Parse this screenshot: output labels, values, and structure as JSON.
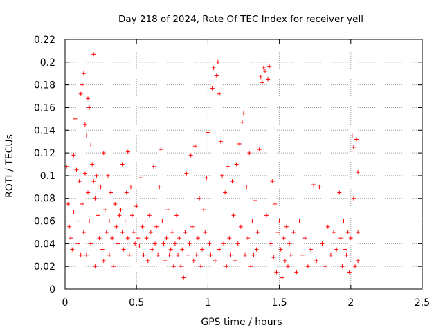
{
  "chart_data": {
    "type": "scatter",
    "title": "Day 218 of 2024, Rate Of TEC Index for receiver yell",
    "xlabel": "GPS time / hours",
    "ylabel": "ROTI / TECUs",
    "xlim": [
      0,
      2.5
    ],
    "ylim": [
      0,
      0.22
    ],
    "xticks": [
      0,
      0.5,
      1,
      1.5,
      2,
      2.5
    ],
    "xtick_labels": [
      "0",
      "0.5",
      "1",
      "1.5",
      "2",
      "2.5"
    ],
    "yticks": [
      0,
      0.02,
      0.04,
      0.06,
      0.08,
      0.1,
      0.12,
      0.14,
      0.16,
      0.18,
      0.2,
      0.22
    ],
    "ytick_labels": [
      "0",
      "0.02",
      "0.04",
      "0.06",
      "0.08",
      "0.1",
      "0.12",
      "0.14",
      "0.16",
      "0.18",
      "0.2",
      "0.22"
    ],
    "grid": true,
    "marker": "+",
    "marker_color": "#ff0000",
    "series": [
      {
        "name": "ROTI",
        "points": [
          [
            0.01,
            0.108
          ],
          [
            0.02,
            0.075
          ],
          [
            0.03,
            0.055
          ],
          [
            0.04,
            0.045
          ],
          [
            0.05,
            0.035
          ],
          [
            0.06,
            0.118
          ],
          [
            0.06,
            0.068
          ],
          [
            0.07,
            0.15
          ],
          [
            0.08,
            0.105
          ],
          [
            0.09,
            0.06
          ],
          [
            0.09,
            0.04
          ],
          [
            0.1,
            0.095
          ],
          [
            0.11,
            0.172
          ],
          [
            0.11,
            0.03
          ],
          [
            0.12,
            0.18
          ],
          [
            0.12,
            0.075
          ],
          [
            0.13,
            0.19
          ],
          [
            0.13,
            0.05
          ],
          [
            0.14,
            0.145
          ],
          [
            0.14,
            0.102
          ],
          [
            0.15,
            0.135
          ],
          [
            0.15,
            0.03
          ],
          [
            0.16,
            0.168
          ],
          [
            0.16,
            0.085
          ],
          [
            0.17,
            0.16
          ],
          [
            0.17,
            0.06
          ],
          [
            0.18,
            0.127
          ],
          [
            0.18,
            0.04
          ],
          [
            0.19,
            0.11
          ],
          [
            0.2,
            0.207
          ],
          [
            0.2,
            0.095
          ],
          [
            0.21,
            0.08
          ],
          [
            0.21,
            0.02
          ],
          [
            0.22,
            0.1
          ],
          [
            0.23,
            0.065
          ],
          [
            0.24,
            0.045
          ],
          [
            0.25,
            0.09
          ],
          [
            0.26,
            0.035
          ],
          [
            0.27,
            0.12
          ],
          [
            0.27,
            0.025
          ],
          [
            0.28,
            0.07
          ],
          [
            0.29,
            0.05
          ],
          [
            0.3,
            0.1
          ],
          [
            0.31,
            0.06
          ],
          [
            0.31,
            0.03
          ],
          [
            0.32,
            0.085
          ],
          [
            0.33,
            0.045
          ],
          [
            0.34,
            0.02
          ],
          [
            0.35,
            0.075
          ],
          [
            0.36,
            0.055
          ],
          [
            0.37,
            0.04
          ],
          [
            0.38,
            0.065
          ],
          [
            0.39,
            0.07
          ],
          [
            0.4,
            0.11
          ],
          [
            0.4,
            0.05
          ],
          [
            0.41,
            0.035
          ],
          [
            0.42,
            0.06
          ],
          [
            0.43,
            0.085
          ],
          [
            0.44,
            0.121
          ],
          [
            0.44,
            0.045
          ],
          [
            0.45,
            0.03
          ],
          [
            0.46,
            0.09
          ],
          [
            0.47,
            0.065
          ],
          [
            0.48,
            0.05
          ],
          [
            0.49,
            0.04
          ],
          [
            0.5,
            0.073
          ],
          [
            0.51,
            0.045
          ],
          [
            0.52,
            0.038
          ],
          [
            0.53,
            0.098
          ],
          [
            0.54,
            0.055
          ],
          [
            0.55,
            0.03
          ],
          [
            0.56,
            0.06
          ],
          [
            0.57,
            0.045
          ],
          [
            0.58,
            0.025
          ],
          [
            0.59,
            0.065
          ],
          [
            0.6,
            0.05
          ],
          [
            0.61,
            0.035
          ],
          [
            0.62,
            0.108
          ],
          [
            0.63,
            0.04
          ],
          [
            0.64,
            0.055
          ],
          [
            0.65,
            0.03
          ],
          [
            0.66,
            0.09
          ],
          [
            0.67,
            0.123
          ],
          [
            0.68,
            0.06
          ],
          [
            0.69,
            0.04
          ],
          [
            0.7,
            0.025
          ],
          [
            0.71,
            0.045
          ],
          [
            0.72,
            0.07
          ],
          [
            0.73,
            0.03
          ],
          [
            0.74,
            0.035
          ],
          [
            0.75,
            0.05
          ],
          [
            0.76,
            0.02
          ],
          [
            0.77,
            0.04
          ],
          [
            0.78,
            0.065
          ],
          [
            0.79,
            0.03
          ],
          [
            0.8,
            0.045
          ],
          [
            0.81,
            0.02
          ],
          [
            0.82,
            0.035
          ],
          [
            0.83,
            0.01
          ],
          [
            0.84,
            0.05
          ],
          [
            0.85,
            0.102
          ],
          [
            0.86,
            0.03
          ],
          [
            0.87,
            0.04
          ],
          [
            0.88,
            0.118
          ],
          [
            0.89,
            0.055
          ],
          [
            0.9,
            0.025
          ],
          [
            0.91,
            0.126
          ],
          [
            0.92,
            0.03
          ],
          [
            0.93,
            0.045
          ],
          [
            0.94,
            0.08
          ],
          [
            0.95,
            0.02
          ],
          [
            0.96,
            0.035
          ],
          [
            0.97,
            0.07
          ],
          [
            0.98,
            0.05
          ],
          [
            0.99,
            0.098
          ],
          [
            1.0,
            0.138
          ],
          [
            1.01,
            0.04
          ],
          [
            1.02,
            0.03
          ],
          [
            1.03,
            0.177
          ],
          [
            1.04,
            0.195
          ],
          [
            1.05,
            0.025
          ],
          [
            1.06,
            0.188
          ],
          [
            1.07,
            0.2
          ],
          [
            1.08,
            0.172
          ],
          [
            1.08,
            0.035
          ],
          [
            1.09,
            0.13
          ],
          [
            1.1,
            0.1
          ],
          [
            1.11,
            0.04
          ],
          [
            1.12,
            0.085
          ],
          [
            1.13,
            0.02
          ],
          [
            1.14,
            0.108
          ],
          [
            1.15,
            0.045
          ],
          [
            1.16,
            0.03
          ],
          [
            1.17,
            0.095
          ],
          [
            1.18,
            0.065
          ],
          [
            1.19,
            0.025
          ],
          [
            1.2,
            0.11
          ],
          [
            1.21,
            0.04
          ],
          [
            1.22,
            0.128
          ],
          [
            1.23,
            0.055
          ],
          [
            1.24,
            0.147
          ],
          [
            1.25,
            0.155
          ],
          [
            1.26,
            0.03
          ],
          [
            1.27,
            0.09
          ],
          [
            1.28,
            0.045
          ],
          [
            1.29,
            0.12
          ],
          [
            1.3,
            0.02
          ],
          [
            1.31,
            0.06
          ],
          [
            1.32,
            0.03
          ],
          [
            1.33,
            0.078
          ],
          [
            1.34,
            0.035
          ],
          [
            1.35,
            0.05
          ],
          [
            1.36,
            0.123
          ],
          [
            1.37,
            0.187
          ],
          [
            1.38,
            0.182
          ],
          [
            1.39,
            0.195
          ],
          [
            1.4,
            0.192
          ],
          [
            1.41,
            0.065
          ],
          [
            1.42,
            0.185
          ],
          [
            1.43,
            0.196
          ],
          [
            1.44,
            0.04
          ],
          [
            1.45,
            0.095
          ],
          [
            1.46,
            0.028
          ],
          [
            1.47,
            0.075
          ],
          [
            1.48,
            0.015
          ],
          [
            1.49,
            0.05
          ],
          [
            1.5,
            0.06
          ],
          [
            1.51,
            0.035
          ],
          [
            1.52,
            0.01
          ],
          [
            1.53,
            0.045
          ],
          [
            1.54,
            0.025
          ],
          [
            1.55,
            0.055
          ],
          [
            1.56,
            0.02
          ],
          [
            1.57,
            0.04
          ],
          [
            1.58,
            0.03
          ],
          [
            1.6,
            0.05
          ],
          [
            1.62,
            0.015
          ],
          [
            1.64,
            0.06
          ],
          [
            1.66,
            0.03
          ],
          [
            1.68,
            0.045
          ],
          [
            1.7,
            0.02
          ],
          [
            1.72,
            0.035
          ],
          [
            1.74,
            0.092
          ],
          [
            1.76,
            0.025
          ],
          [
            1.78,
            0.09
          ],
          [
            1.8,
            0.04
          ],
          [
            1.82,
            0.02
          ],
          [
            1.84,
            0.055
          ],
          [
            1.86,
            0.03
          ],
          [
            1.88,
            0.05
          ],
          [
            1.9,
            0.035
          ],
          [
            1.92,
            0.085
          ],
          [
            1.93,
            0.045
          ],
          [
            1.94,
            0.02
          ],
          [
            1.95,
            0.06
          ],
          [
            1.96,
            0.035
          ],
          [
            1.97,
            0.03
          ],
          [
            1.98,
            0.05
          ],
          [
            1.99,
            0.015
          ],
          [
            2.0,
            0.045
          ],
          [
            2.01,
            0.135
          ],
          [
            2.02,
            0.125
          ],
          [
            2.02,
            0.08
          ],
          [
            2.03,
            0.02
          ],
          [
            2.04,
            0.132
          ],
          [
            2.05,
            0.103
          ],
          [
            2.05,
            0.05
          ],
          [
            2.05,
            0.025
          ]
        ]
      }
    ]
  }
}
